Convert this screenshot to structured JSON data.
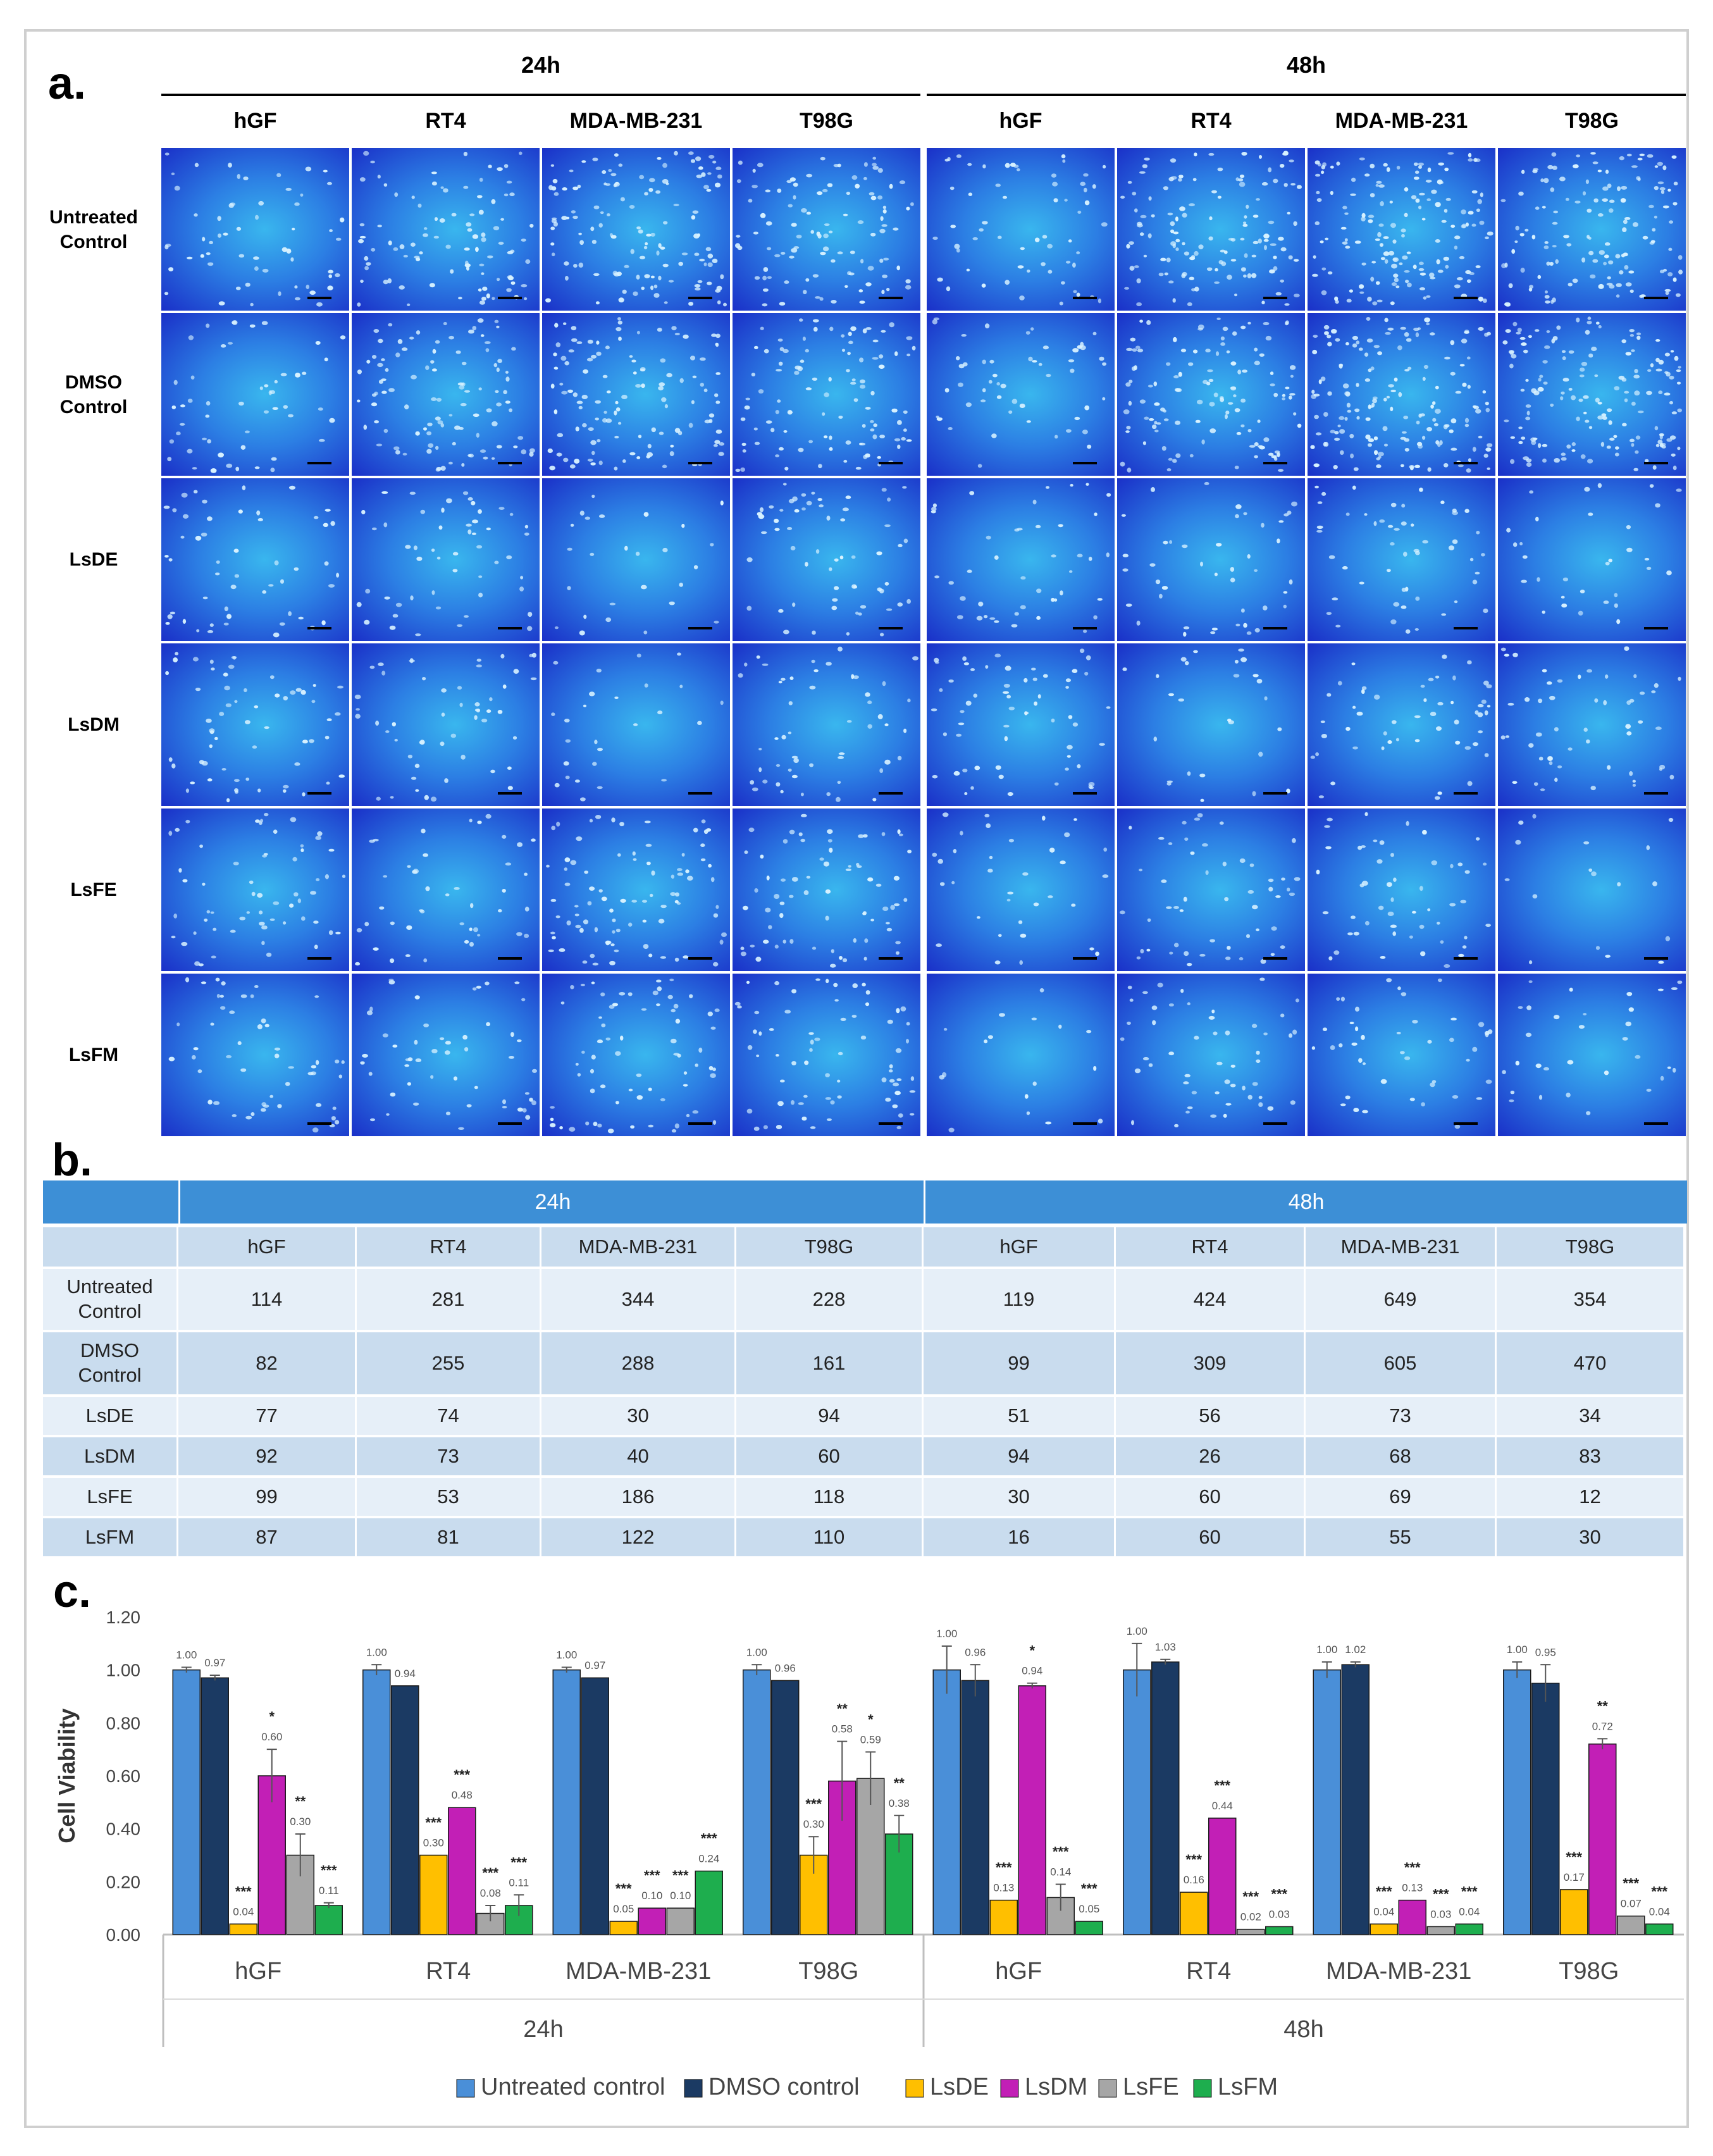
{
  "panel_a": {
    "label": "a.",
    "time_points": [
      "24h",
      "48h"
    ],
    "cell_lines": [
      "hGF",
      "RT4",
      "MDA-MB-231",
      "T98G"
    ],
    "treatments": [
      "Untreated Control",
      "DMSO Control",
      "LsDE",
      "LsDM",
      "LsFE",
      "LsFM"
    ],
    "densities": [
      [
        [
          0.35,
          0.55,
          0.75,
          0.6
        ],
        [
          0.35,
          0.75,
          0.9,
          0.8
        ]
      ],
      [
        [
          0.3,
          0.6,
          0.7,
          0.6
        ],
        [
          0.3,
          0.7,
          0.95,
          0.9
        ]
      ],
      [
        [
          0.3,
          0.3,
          0.15,
          0.35
        ],
        [
          0.25,
          0.25,
          0.3,
          0.18
        ]
      ],
      [
        [
          0.35,
          0.3,
          0.15,
          0.3
        ],
        [
          0.35,
          0.15,
          0.3,
          0.3
        ]
      ],
      [
        [
          0.35,
          0.25,
          0.5,
          0.4
        ],
        [
          0.2,
          0.3,
          0.3,
          0.1
        ]
      ],
      [
        [
          0.3,
          0.3,
          0.4,
          0.4
        ],
        [
          0.1,
          0.3,
          0.25,
          0.18
        ]
      ]
    ],
    "colors": {
      "tile_center": "#39b6ee",
      "tile_edge": "#1a30c8",
      "nuclei": "#d8f2ff"
    }
  },
  "panel_b": {
    "label": "b.",
    "time_points": [
      "24h",
      "48h"
    ],
    "cell_lines": [
      "hGF",
      "RT4",
      "MDA-MB-231",
      "T98G"
    ],
    "rows": [
      {
        "label": "Untreated Control",
        "values": [
          "114",
          "281",
          "344",
          "228",
          "119",
          "424",
          "649",
          "354"
        ]
      },
      {
        "label": "DMSO Control",
        "values": [
          "82",
          "255",
          "288",
          "161",
          "99",
          "309",
          "605",
          "470"
        ]
      },
      {
        "label": "LsDE",
        "values": [
          "77",
          "74",
          "30",
          "94",
          "51",
          "56",
          "73",
          "34"
        ]
      },
      {
        "label": "LsDM",
        "values": [
          "92",
          "73",
          "40",
          "60",
          "94",
          "26",
          "68",
          "83"
        ]
      },
      {
        "label": "LsFE",
        "values": [
          "99",
          "53",
          "186",
          "118",
          "30",
          "60",
          "69",
          "12"
        ]
      },
      {
        "label": "LsFM",
        "values": [
          "87",
          "81",
          "122",
          "110",
          "16",
          "60",
          "55",
          "30"
        ]
      }
    ],
    "colors": {
      "header": "#3d8fd6",
      "row_light": "#e6eff8",
      "row_dark": "#c9dcee"
    }
  },
  "chart_data": {
    "label": "c.",
    "type": "bar",
    "ylabel": "Cell Viability",
    "ylim": [
      0,
      1.2
    ],
    "yticks": [
      "0.00",
      "0.20",
      "0.40",
      "0.60",
      "0.80",
      "1.00",
      "1.20"
    ],
    "categories": [
      "hGF",
      "RT4",
      "MDA-MB-231",
      "T98G",
      "hGF",
      "RT4",
      "MDA-MB-231",
      "T98G"
    ],
    "groups": [
      "24h",
      "48h"
    ],
    "legend_position": "bottom",
    "series": [
      {
        "name": "Untreated control",
        "color": "#4a8fd8",
        "values": [
          1.0,
          1.0,
          1.0,
          1.0,
          1.0,
          1.0,
          1.0,
          1.0
        ],
        "labels": [
          "1.00",
          "1.00",
          "1.00",
          "1.00",
          "1.00",
          "1.00",
          "1.00",
          "1.00"
        ],
        "errors": [
          0.01,
          0.02,
          0.01,
          0.02,
          0.09,
          0.1,
          0.03,
          0.03
        ],
        "sig": [
          "",
          "",
          "",
          "",
          "",
          "",
          "",
          ""
        ]
      },
      {
        "name": "DMSO control",
        "color": "#1b3a63",
        "values": [
          0.97,
          0.94,
          0.97,
          0.96,
          0.96,
          1.03,
          1.02,
          0.95
        ],
        "labels": [
          "0.97",
          "0.94",
          "0.97",
          "0.96",
          "0.96",
          "1.03",
          "1.02",
          "0.95"
        ],
        "errors": [
          0.01,
          0.0,
          0.0,
          0.0,
          0.06,
          0.01,
          0.01,
          0.07
        ],
        "sig": [
          "",
          "",
          "",
          "",
          "",
          "",
          "",
          ""
        ]
      },
      {
        "name": "LsDE",
        "color": "#ffbf00",
        "values": [
          0.04,
          0.3,
          0.05,
          0.3,
          0.13,
          0.16,
          0.04,
          0.17
        ],
        "labels": [
          "0.04",
          "0.30",
          "0.05",
          "0.30",
          "0.13",
          "0.16",
          "0.04",
          "0.17"
        ],
        "errors": [
          0.0,
          0.0,
          0.0,
          0.07,
          0.0,
          0.0,
          0.0,
          0.0
        ],
        "sig": [
          "***",
          "***",
          "***",
          "***",
          "***",
          "***",
          "***",
          "***"
        ]
      },
      {
        "name": "LsDM",
        "color": "#c21fb6",
        "values": [
          0.6,
          0.48,
          0.1,
          0.58,
          0.94,
          0.44,
          0.13,
          0.72
        ],
        "labels": [
          "0.60",
          "0.48",
          "0.10",
          "0.58",
          "0.94",
          "0.44",
          "0.13",
          "0.72"
        ],
        "errors": [
          0.1,
          0.0,
          0.0,
          0.15,
          0.01,
          0.0,
          0.0,
          0.02
        ],
        "sig": [
          "*",
          "***",
          "***",
          "**",
          "*",
          "***",
          "***",
          "**"
        ]
      },
      {
        "name": "LsFE",
        "color": "#a6a6a6",
        "values": [
          0.3,
          0.08,
          0.1,
          0.59,
          0.14,
          0.02,
          0.03,
          0.07
        ],
        "labels": [
          "0.30",
          "0.08",
          "0.10",
          "0.59",
          "0.14",
          "0.02",
          "0.03",
          "0.07"
        ],
        "errors": [
          0.08,
          0.03,
          0.0,
          0.1,
          0.05,
          0.0,
          0.0,
          0.0
        ],
        "sig": [
          "**",
          "***",
          "***",
          "*",
          "***",
          "***",
          "***",
          "***"
        ]
      },
      {
        "name": "LsFM",
        "color": "#1eae4e",
        "values": [
          0.11,
          0.11,
          0.24,
          0.38,
          0.05,
          0.03,
          0.04,
          0.04
        ],
        "labels": [
          "0.11",
          "0.11",
          "0.24",
          "0.38",
          "0.05",
          "0.03",
          "0.04",
          "0.04"
        ],
        "errors": [
          0.01,
          0.04,
          0.0,
          0.07,
          0.0,
          0.0,
          0.0,
          0.0
        ],
        "sig": [
          "***",
          "***",
          "***",
          "**",
          "***",
          "***",
          "***",
          "***"
        ]
      }
    ]
  }
}
